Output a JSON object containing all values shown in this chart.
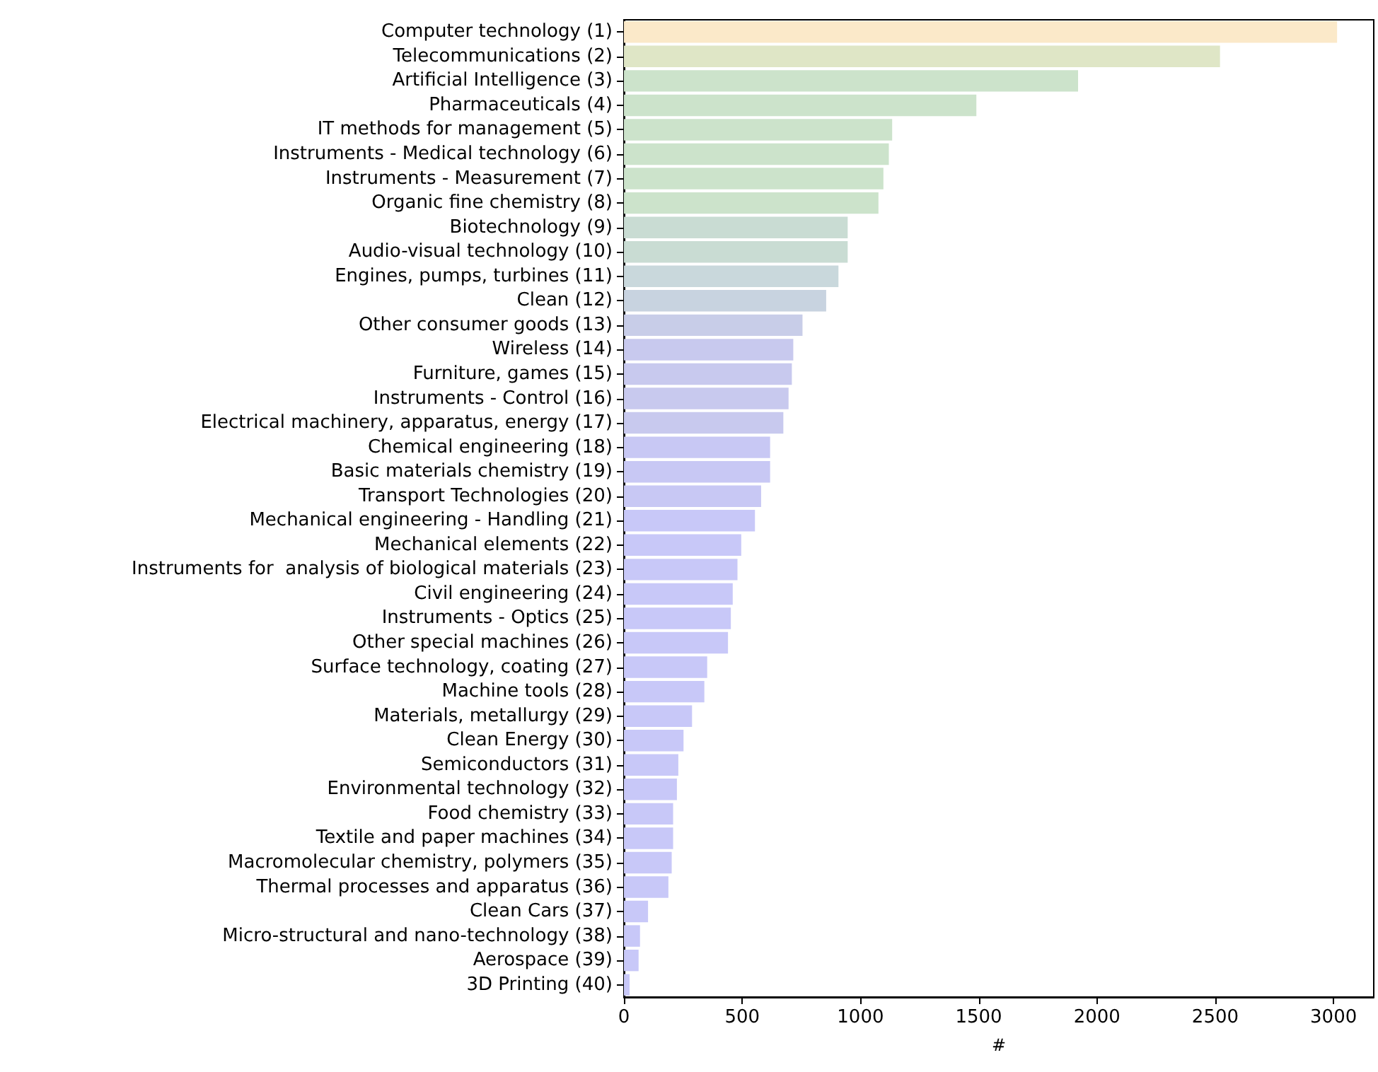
{
  "chart_data": {
    "type": "bar",
    "orientation": "horizontal",
    "xlabel": "#",
    "categories": [
      "Computer technology (1)",
      "Telecommunications (2)",
      "Artificial Intelligence (3)",
      "Pharmaceuticals (4)",
      "IT methods for management (5)",
      "Instruments - Medical technology (6)",
      "Instruments - Measurement (7)",
      "Organic fine chemistry (8)",
      "Biotechnology (9)",
      "Audio-visual technology (10)",
      "Engines, pumps, turbines (11)",
      "Clean (12)",
      "Other consumer goods (13)",
      "Wireless (14)",
      "Furniture, games (15)",
      "Instruments - Control (16)",
      "Electrical machinery, apparatus, energy (17)",
      "Chemical engineering (18)",
      "Basic materials chemistry (19)",
      "Transport Technologies (20)",
      "Mechanical engineering - Handling (21)",
      "Mechanical elements (22)",
      "Instruments for  analysis of biological materials (23)",
      "Civil engineering (24)",
      "Instruments - Optics (25)",
      "Other special machines (26)",
      "Surface technology, coating (27)",
      "Machine tools (28)",
      "Materials, metallurgy (29)",
      "Clean Energy (30)",
      "Semiconductors (31)",
      "Environmental technology (32)",
      "Food chemistry (33)",
      "Textile and paper machines (34)",
      "Macromolecular chemistry, polymers (35)",
      "Thermal processes and apparatus (36)",
      "Clean Cars (37)",
      "Micro-structural and nano-technology (38)",
      "Aerospace (39)",
      "3D Printing (40)"
    ],
    "values": [
      3015,
      2520,
      1920,
      1490,
      1134,
      1120,
      1097,
      1076,
      946,
      946,
      907,
      855,
      755,
      716,
      710,
      696,
      674,
      618,
      618,
      580,
      554,
      496,
      480,
      460,
      452,
      440,
      352,
      340,
      288,
      252,
      230,
      224,
      208,
      208,
      202,
      188,
      102,
      68,
      62,
      24
    ],
    "colors": [
      "#fbe9c9",
      "#dfe6c6",
      "#cce3cb",
      "#cce3cb",
      "#cce3cb",
      "#cce3cb",
      "#cce3cb",
      "#cce3cb",
      "#c9dcd3",
      "#c9dcd3",
      "#c9d8dc",
      "#c8d3e0",
      "#c8cde8",
      "#c8c9ee",
      "#c8c9ee",
      "#c8c9ee",
      "#c8c9ee",
      "#c8c8f4",
      "#c8c8f4",
      "#c8c8f4",
      "#c8c8f8",
      "#c8c8f8",
      "#c8c8f8",
      "#c8c8f8",
      "#c8c8f8",
      "#c8c8f8",
      "#c8c8f8",
      "#c8c8f8",
      "#c8c8f8",
      "#c8c8f8",
      "#c8c8f8",
      "#c8c8f8",
      "#c8c8f8",
      "#c8c8f8",
      "#c8c8f8",
      "#c8c8f8",
      "#c8c8f8",
      "#c8c8f8",
      "#c8c8f8",
      "#c8c8f8"
    ],
    "xlim": [
      0,
      3170
    ],
    "xticks": [
      0,
      500,
      1000,
      1500,
      2000,
      2500,
      3000
    ]
  }
}
